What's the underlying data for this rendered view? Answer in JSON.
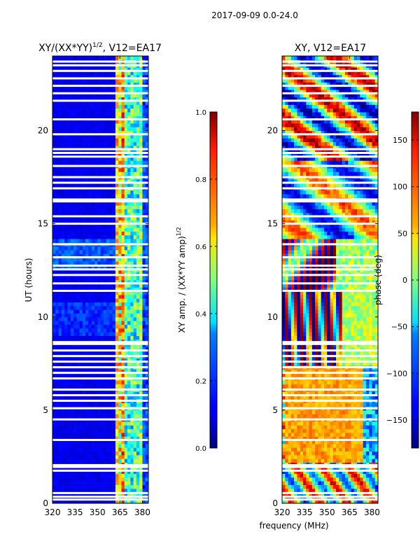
{
  "suptitle": "2017-09-09 0.0-24.0",
  "common_xlabel": "frequency (MHz)",
  "colors": {
    "frame": "#000000",
    "background": "#ffffff",
    "flag": "#ffffff",
    "jet_low": "#00007f",
    "jet_mid": "#7fff7f",
    "jet_high": "#7f0000"
  },
  "chart_data": [
    {
      "type": "heatmap",
      "title_main": "XY/(XX*YY)",
      "title_exp": "1/2",
      "title_tail": ", V12=EA17",
      "ylabel": "UT (hours)",
      "xlabel": "",
      "x_ticks": [
        "320",
        "335",
        "350",
        "365",
        "380"
      ],
      "x_tick_values": [
        320,
        335,
        350,
        365,
        380
      ],
      "y_ticks": [
        "0",
        "5",
        "10",
        "15",
        "20"
      ],
      "y_tick_values": [
        0,
        5,
        10,
        15,
        20
      ],
      "xlim": [
        320,
        384
      ],
      "ylim": [
        0,
        24
      ],
      "colormap": "jet",
      "colorbar": {
        "label_main": "XY amp. / (XX*YY amp)",
        "label_exp": "1/2",
        "ticks": [
          "0.0",
          "0.2",
          "0.4",
          "0.6",
          "0.8",
          "1.0"
        ],
        "tick_values": [
          0.0,
          0.2,
          0.4,
          0.6,
          0.8,
          1.0
        ],
        "vmin": 0.0,
        "vmax": 1.0
      },
      "flagged_hours": [
        0.2,
        0.35,
        0.55,
        1.75,
        1.95,
        2.05,
        3.4,
        4.5,
        5.1,
        5.5,
        5.8,
        6.1,
        6.7,
        7.0,
        7.3,
        7.6,
        7.9,
        8.2,
        8.55,
        8.65,
        11.4,
        11.8,
        12.25,
        12.55,
        12.75,
        13.2,
        13.9,
        15.0,
        15.4,
        16.2,
        16.3,
        16.9,
        17.2,
        17.5,
        18.1,
        18.6,
        18.8,
        19.0,
        19.8,
        20.6,
        21.6,
        22.0,
        22.4,
        22.8,
        23.2,
        23.5,
        23.7
      ]
    },
    {
      "type": "heatmap",
      "title_main": "XY, V12=EA17",
      "title_exp": "",
      "title_tail": "",
      "ylabel": "",
      "xlabel": "frequency (MHz)",
      "x_ticks": [
        "320",
        "335",
        "350",
        "365",
        "380"
      ],
      "x_tick_values": [
        320,
        335,
        350,
        365,
        380
      ],
      "y_ticks": [
        "0",
        "5",
        "10",
        "15",
        "20"
      ],
      "y_tick_values": [
        0,
        5,
        10,
        15,
        20
      ],
      "xlim": [
        320,
        384
      ],
      "ylim": [
        0,
        24
      ],
      "colormap": "jet",
      "colorbar": {
        "label_main": "phase (deg)",
        "label_exp": "",
        "ticks": [
          "−150",
          "−100",
          "−50",
          "0",
          "50",
          "100",
          "150"
        ],
        "tick_values": [
          -150,
          -100,
          -50,
          0,
          50,
          100,
          150
        ],
        "vmin": -180,
        "vmax": 180
      },
      "flagged_hours": [
        0.2,
        0.35,
        0.55,
        1.75,
        1.95,
        2.05,
        3.4,
        4.5,
        5.1,
        5.5,
        5.8,
        6.1,
        6.7,
        7.0,
        7.3,
        7.6,
        7.9,
        8.2,
        8.55,
        8.65,
        11.4,
        11.8,
        12.25,
        12.55,
        12.75,
        13.2,
        13.9,
        15.0,
        15.4,
        16.2,
        16.3,
        16.9,
        17.2,
        17.5,
        18.1,
        18.6,
        18.8,
        19.0,
        19.8,
        20.6,
        21.6,
        22.0,
        22.4,
        22.8,
        23.2,
        23.5,
        23.7
      ]
    }
  ]
}
